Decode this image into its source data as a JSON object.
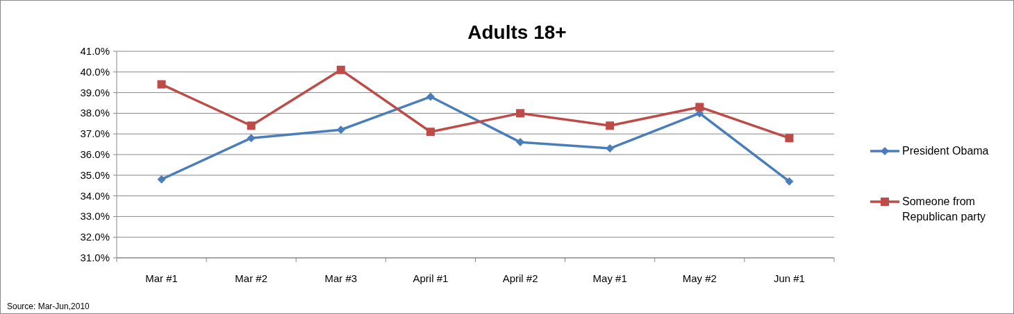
{
  "chart_data": {
    "type": "line",
    "title": "Adults 18+",
    "categories": [
      "Mar #1",
      "Mar #2",
      "Mar #3",
      "April #1",
      "April #2",
      "May #1",
      "May #2",
      "Jun #1"
    ],
    "series": [
      {
        "name": "President Obama",
        "color": "#4a7ebb",
        "marker": "diamond",
        "values": [
          34.8,
          36.8,
          37.2,
          38.8,
          36.6,
          36.3,
          38.0,
          34.7
        ]
      },
      {
        "name": "Someone from Republican party",
        "color": "#be4b48",
        "marker": "square",
        "values": [
          39.4,
          37.4,
          40.1,
          37.1,
          38.0,
          37.4,
          38.3,
          36.8
        ]
      }
    ],
    "ylim": [
      31,
      41
    ],
    "yticks": [
      {
        "value": 31,
        "label": "31.0%"
      },
      {
        "value": 32,
        "label": "32.0%"
      },
      {
        "value": 33,
        "label": "33.0%"
      },
      {
        "value": 34,
        "label": "34.0%"
      },
      {
        "value": 35,
        "label": "35.0%"
      },
      {
        "value": 36,
        "label": "36.0%"
      },
      {
        "value": 37,
        "label": "37.0%"
      },
      {
        "value": 38,
        "label": "38.0%"
      },
      {
        "value": 39,
        "label": "39.0%"
      },
      {
        "value": 40,
        "label": "40.0%"
      },
      {
        "value": 41,
        "label": "41.0%"
      }
    ],
    "grid": "y",
    "legend": "right",
    "line_style": "solid",
    "annotations": [
      "Source: Mar-Jun,2010"
    ]
  }
}
